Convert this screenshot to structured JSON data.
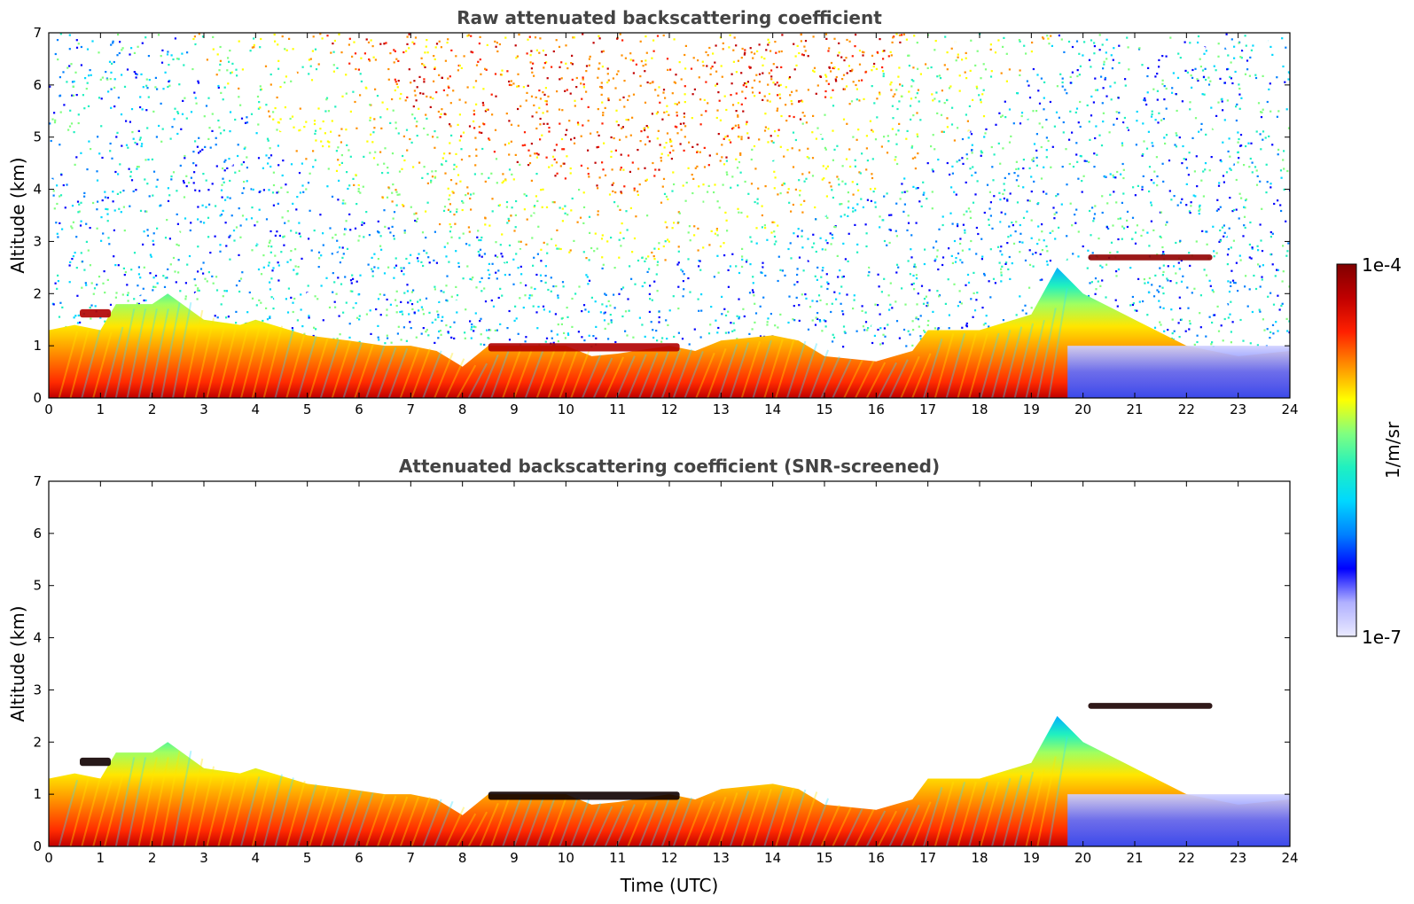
{
  "chart_data": [
    {
      "type": "heatmap",
      "title": "Raw attenuated backscattering coefficient",
      "xlabel": "",
      "ylabel": "Altitude (km)",
      "xlim": [
        0,
        24
      ],
      "ylim": [
        0,
        7
      ],
      "xticks": [
        0,
        1,
        2,
        3,
        4,
        5,
        6,
        7,
        8,
        9,
        10,
        11,
        12,
        13,
        14,
        15,
        16,
        17,
        18,
        19,
        20,
        21,
        22,
        23,
        24
      ],
      "yticks": [
        0,
        1,
        2,
        3,
        4,
        5,
        6,
        7
      ],
      "noise": "high",
      "boundary_layer_top_km": [
        [
          0,
          1.3
        ],
        [
          0.5,
          1.4
        ],
        [
          1,
          1.3
        ],
        [
          1.3,
          1.8
        ],
        [
          2,
          1.8
        ],
        [
          2.3,
          2.0
        ],
        [
          3,
          1.5
        ],
        [
          3.7,
          1.4
        ],
        [
          4,
          1.5
        ],
        [
          5,
          1.2
        ],
        [
          5.8,
          1.1
        ],
        [
          6.5,
          1.0
        ],
        [
          7,
          1.0
        ],
        [
          7.5,
          0.9
        ],
        [
          8,
          0.6
        ],
        [
          8.5,
          1.0
        ],
        [
          9,
          1.0
        ],
        [
          10,
          1.0
        ],
        [
          10.5,
          0.8
        ],
        [
          11,
          0.85
        ],
        [
          12,
          1.0
        ],
        [
          12.5,
          0.9
        ],
        [
          13,
          1.1
        ],
        [
          14,
          1.2
        ],
        [
          14.5,
          1.1
        ],
        [
          15,
          0.8
        ],
        [
          16,
          0.7
        ],
        [
          16.7,
          0.9
        ],
        [
          17,
          1.3
        ],
        [
          18,
          1.3
        ],
        [
          19,
          1.6
        ],
        [
          19.5,
          2.5
        ],
        [
          20,
          2.0
        ],
        [
          21,
          1.5
        ],
        [
          22,
          1.0
        ],
        [
          23,
          0.8
        ],
        [
          24,
          0.9
        ]
      ],
      "layers": [
        {
          "x0": 0.6,
          "x1": 1.2,
          "y0": 1.35,
          "y1": 1.7,
          "level": "high"
        },
        {
          "x0": 20.1,
          "x1": 22.5,
          "y0": 2.5,
          "y1": 2.75,
          "level": "max"
        },
        {
          "x0": 8.5,
          "x1": 12.2,
          "y0": 0.7,
          "y1": 1.05,
          "level": "high"
        }
      ],
      "clear_air_region": {
        "x0": 19.7,
        "x1": 24,
        "y0": 0,
        "y1": 1.0,
        "level": "low"
      }
    },
    {
      "type": "heatmap",
      "title": "Attenuated backscattering coefficient (SNR-screened)",
      "xlabel": "Time (UTC)",
      "ylabel": "Altitude (km)",
      "xlim": [
        0,
        24
      ],
      "ylim": [
        0,
        7
      ],
      "xticks": [
        0,
        1,
        2,
        3,
        4,
        5,
        6,
        7,
        8,
        9,
        10,
        11,
        12,
        13,
        14,
        15,
        16,
        17,
        18,
        19,
        20,
        21,
        22,
        23,
        24
      ],
      "yticks": [
        0,
        1,
        2,
        3,
        4,
        5,
        6,
        7
      ],
      "noise": "none",
      "boundary_layer_top_km": [
        [
          0,
          1.3
        ],
        [
          0.5,
          1.4
        ],
        [
          1,
          1.3
        ],
        [
          1.3,
          1.8
        ],
        [
          2,
          1.8
        ],
        [
          2.3,
          2.0
        ],
        [
          3,
          1.5
        ],
        [
          3.7,
          1.4
        ],
        [
          4,
          1.5
        ],
        [
          5,
          1.2
        ],
        [
          5.8,
          1.1
        ],
        [
          6.5,
          1.0
        ],
        [
          7,
          1.0
        ],
        [
          7.5,
          0.9
        ],
        [
          8,
          0.6
        ],
        [
          8.5,
          1.0
        ],
        [
          9,
          1.0
        ],
        [
          10,
          1.0
        ],
        [
          10.5,
          0.8
        ],
        [
          11,
          0.85
        ],
        [
          12,
          1.0
        ],
        [
          12.5,
          0.9
        ],
        [
          13,
          1.1
        ],
        [
          14,
          1.2
        ],
        [
          14.5,
          1.1
        ],
        [
          15,
          0.8
        ],
        [
          16,
          0.7
        ],
        [
          16.7,
          0.9
        ],
        [
          17,
          1.3
        ],
        [
          18,
          1.3
        ],
        [
          19,
          1.6
        ],
        [
          19.5,
          2.5
        ],
        [
          20,
          2.0
        ],
        [
          21,
          1.5
        ],
        [
          22,
          1.0
        ],
        [
          23,
          0.8
        ],
        [
          24,
          0.9
        ]
      ],
      "layers": [
        {
          "x0": 0.6,
          "x1": 1.2,
          "y0": 1.35,
          "y1": 1.7,
          "level": "high"
        },
        {
          "x0": 20.1,
          "x1": 22.5,
          "y0": 2.5,
          "y1": 2.75,
          "level": "max"
        },
        {
          "x0": 8.5,
          "x1": 12.2,
          "y0": 0.7,
          "y1": 1.05,
          "level": "high"
        }
      ],
      "clear_air_region": {
        "x0": 19.7,
        "x1": 24,
        "y0": 0,
        "y1": 1.0,
        "level": "low"
      }
    }
  ],
  "colorbar": {
    "label": "1/m/sr",
    "max_label": "1e-4",
    "min_label": "1e-7",
    "scale": "log",
    "colormap": [
      "#eaeaff",
      "#b0b0ff",
      "#0000ff",
      "#0080ff",
      "#00d8ff",
      "#20f0c0",
      "#80ff80",
      "#ffff00",
      "#ff9000",
      "#ff2000",
      "#c00000",
      "#800000"
    ]
  },
  "colors": {
    "title": "#444444",
    "axis": "#000000",
    "background": "#ffffff"
  }
}
